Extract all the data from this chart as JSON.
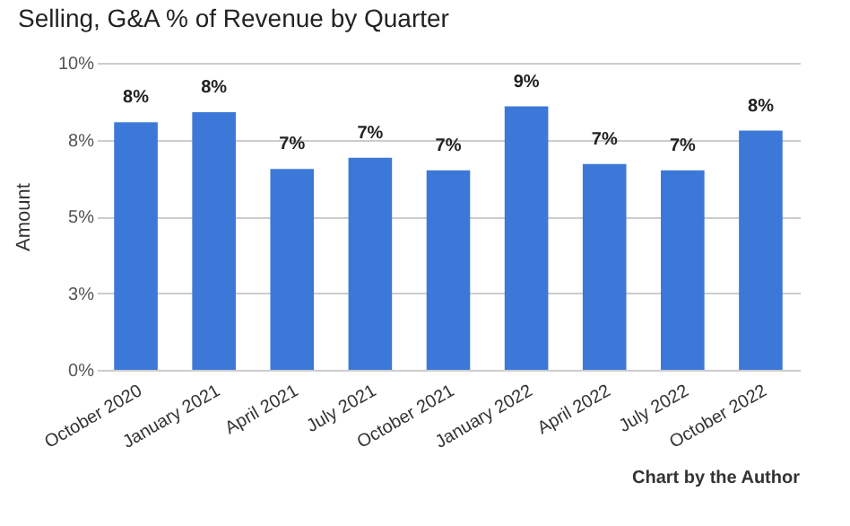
{
  "chart_data": {
    "type": "bar",
    "title": "Selling, G&A % of Revenue by Quarter",
    "ylabel": "Amount",
    "categories": [
      "October 2020",
      "January 2021",
      "April 2021",
      "July 2021",
      "October 2021",
      "January 2022",
      "April 2022",
      "July 2022",
      "October 2022"
    ],
    "values": [
      8.06,
      8.39,
      6.54,
      6.91,
      6.5,
      8.58,
      6.7,
      6.5,
      7.79
    ],
    "value_labels": [
      "8%",
      "8%",
      "7%",
      "7%",
      "7%",
      "9%",
      "7%",
      "7%",
      "8%"
    ],
    "color": "#3c78d8",
    "ylim": [
      0,
      10
    ],
    "yticks": [
      {
        "value": 0,
        "label": "0%"
      },
      {
        "value": 2.5,
        "label": "3%"
      },
      {
        "value": 5,
        "label": "5%"
      },
      {
        "value": 7.5,
        "label": "8%"
      },
      {
        "value": 10,
        "label": "10%"
      }
    ],
    "grid": "y",
    "annotations": [
      "Chart by the Author"
    ]
  }
}
